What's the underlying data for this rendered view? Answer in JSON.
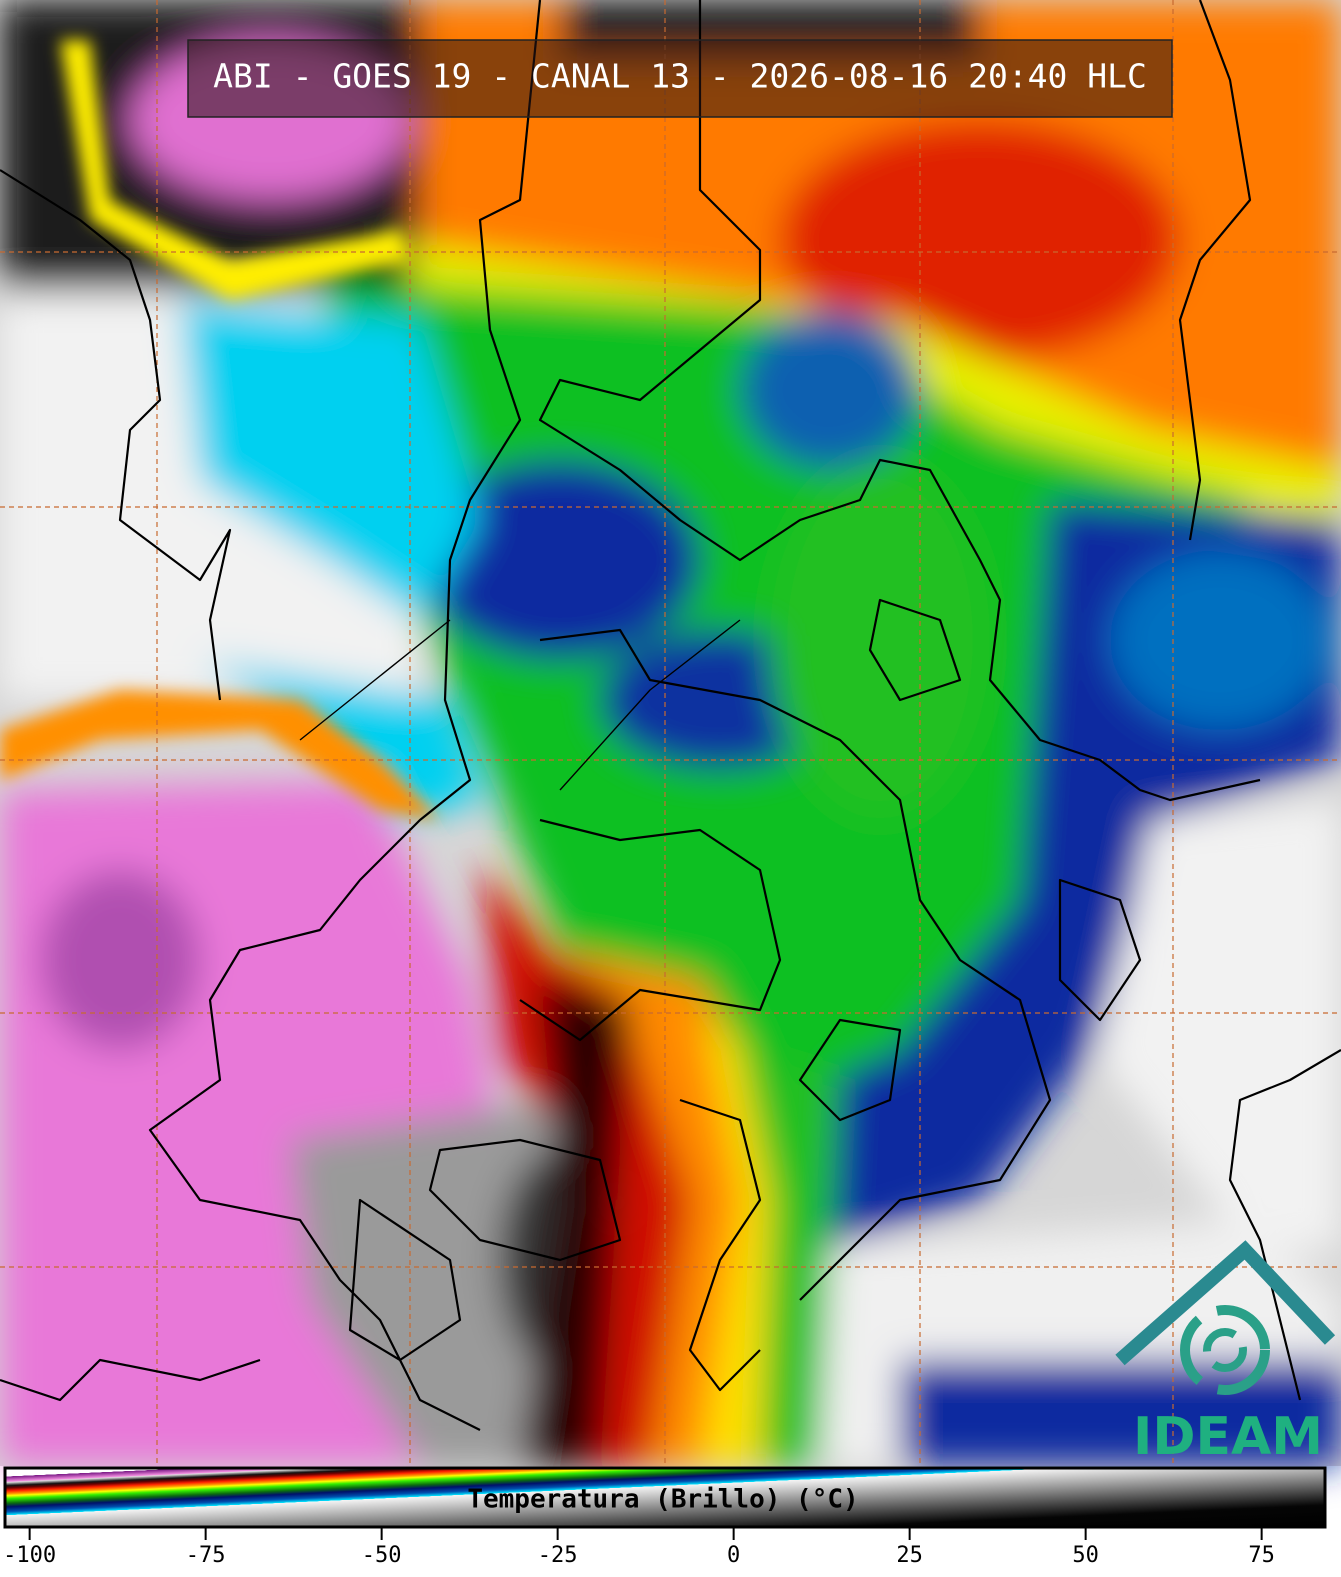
{
  "header": {
    "title": "ABI - GOES 19 - CANAL 13 - 2026-08-16 20:40 HLC"
  },
  "colorbar": {
    "label": "Temperatura (Brillo) (°C)",
    "lim": [
      -103.5,
      84
    ],
    "ticks": [
      -100,
      -75,
      -50,
      -25,
      0,
      25,
      50,
      75
    ]
  },
  "logo": {
    "text": "IDEAM"
  }
}
